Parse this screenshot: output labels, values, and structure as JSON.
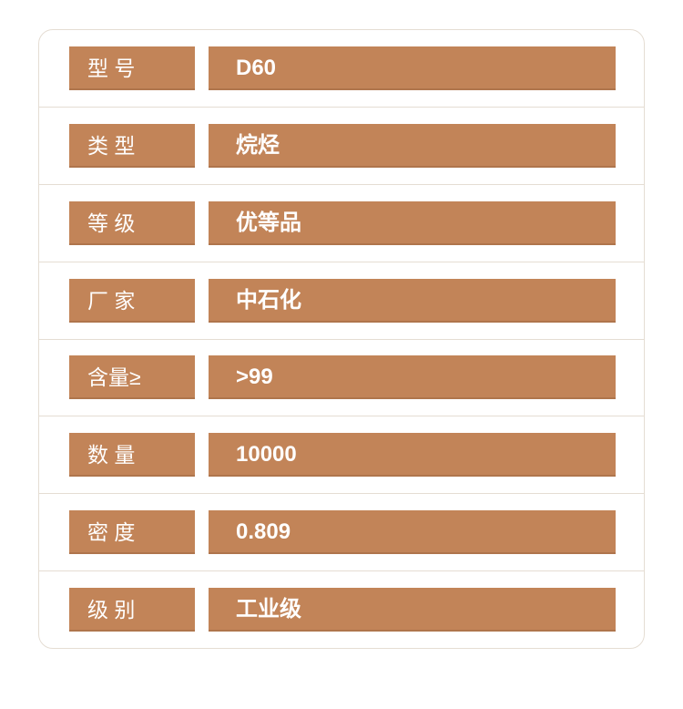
{
  "theme": {
    "bar_color": "#C28458",
    "card_border_color": "#E5DDD3",
    "divider_color": "#E5DDD3",
    "text_color": "#FFFFFF",
    "background_color": "#FFFFFF"
  },
  "spec_table": {
    "rows": [
      {
        "label": "型 号",
        "value": "D60"
      },
      {
        "label": "类 型",
        "value": "烷烃"
      },
      {
        "label": "等 级",
        "value": "优等品"
      },
      {
        "label": "厂 家",
        "value": "中石化"
      },
      {
        "label": "含量≥",
        "value": ">99"
      },
      {
        "label": "数 量",
        "value": "10000"
      },
      {
        "label": "密 度",
        "value": "0.809"
      },
      {
        "label": "级 别",
        "value": "工业级"
      }
    ]
  }
}
